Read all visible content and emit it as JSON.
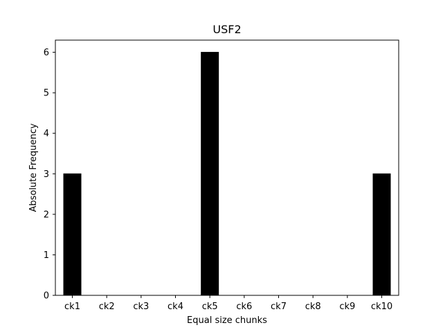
{
  "chart_data": {
    "type": "bar",
    "title": "USF2",
    "xlabel": "Equal size chunks",
    "ylabel": "Absolute Frequency",
    "categories": [
      "ck1",
      "ck2",
      "ck3",
      "ck4",
      "ck5",
      "ck6",
      "ck7",
      "ck8",
      "ck9",
      "ck10"
    ],
    "values": [
      3,
      0,
      0,
      0,
      6,
      0,
      0,
      0,
      0,
      3
    ],
    "ylim": [
      0,
      6.3
    ],
    "yticks": [
      "0",
      "1",
      "2",
      "3",
      "4",
      "5",
      "6"
    ],
    "grid": false,
    "legend": "none",
    "bar_color": "#000000"
  }
}
